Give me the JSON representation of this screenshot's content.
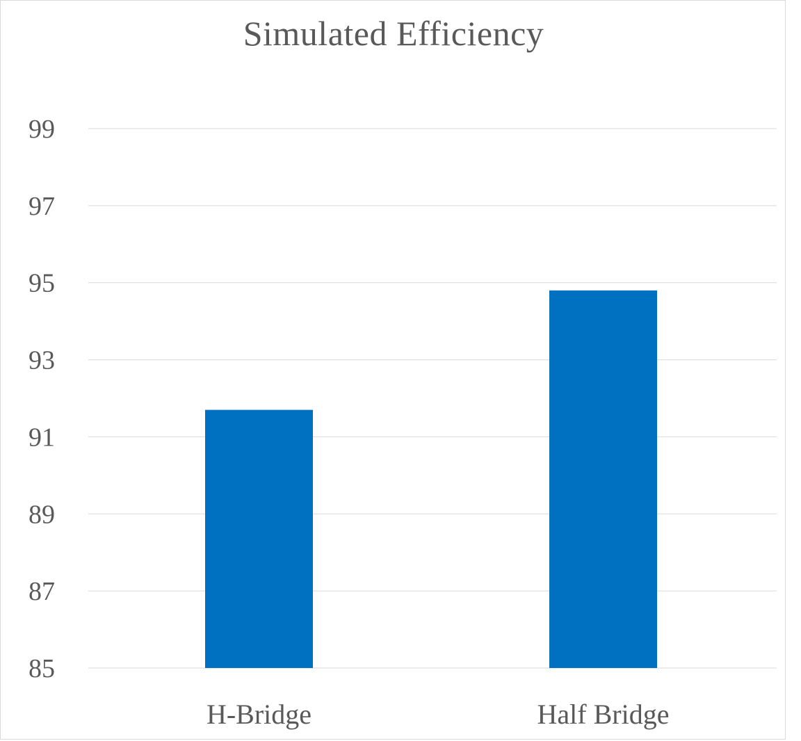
{
  "chart_data": {
    "type": "bar",
    "title": "Simulated Efficiency",
    "xlabel": "",
    "ylabel": "",
    "categories": [
      "H-Bridge",
      "Half Bridge"
    ],
    "values": [
      91.7,
      94.8
    ],
    "ylim": [
      85,
      99
    ],
    "yticks": [
      85,
      87,
      89,
      91,
      93,
      95,
      97,
      99
    ],
    "grid": true,
    "legend": "none",
    "bar_color": "#0070c0"
  }
}
